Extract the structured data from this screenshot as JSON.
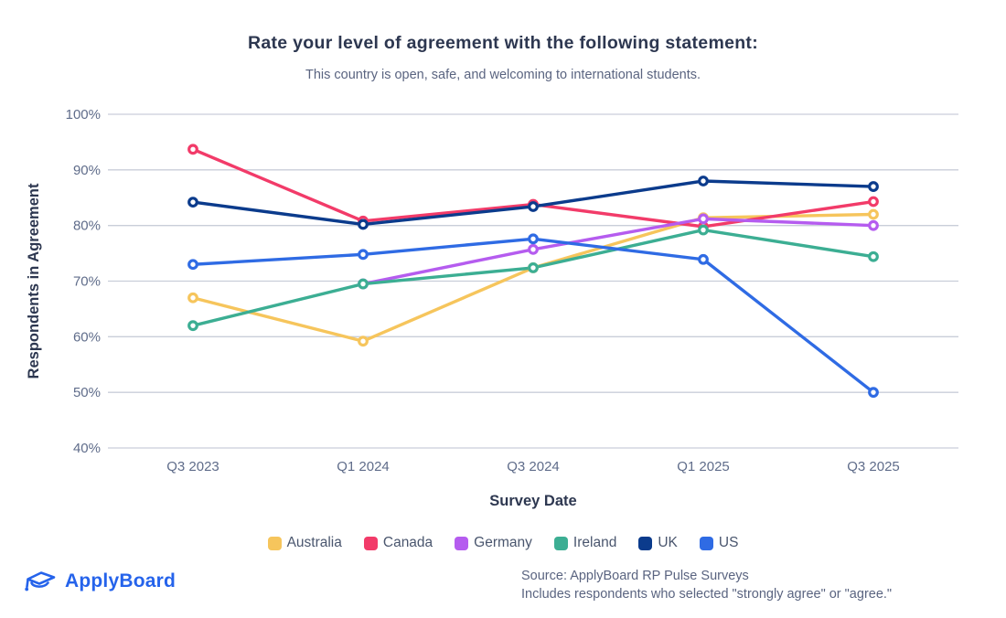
{
  "header": {
    "title": "Rate your level of agreement with the following statement:",
    "subtitle": "This country is open, safe, and welcoming to international students."
  },
  "chart_data": {
    "type": "line",
    "title": "Rate your level of agreement with the following statement:",
    "subtitle": "This country is open, safe, and welcoming to international students.",
    "categories": [
      "Q3 2023",
      "Q1 2024",
      "Q3 2024",
      "Q1 2025",
      "Q3 2025"
    ],
    "series": [
      {
        "name": "Australia",
        "color": "#f6c55c",
        "values": [
          67,
          59.2,
          72.4,
          81.4,
          82
        ]
      },
      {
        "name": "Canada",
        "color": "#f23b69",
        "values": [
          93.7,
          80.8,
          83.8,
          79.8,
          84.3
        ]
      },
      {
        "name": "Germany",
        "color": "#b55cef",
        "values": [
          null,
          69.5,
          75.7,
          81.2,
          80
        ]
      },
      {
        "name": "Ireland",
        "color": "#3cae93",
        "values": [
          62,
          69.5,
          72.4,
          79.2,
          74.4
        ]
      },
      {
        "name": "UK",
        "color": "#0b3b8c",
        "values": [
          84.2,
          80.2,
          83.4,
          88,
          87
        ]
      },
      {
        "name": "US",
        "color": "#2f6be4",
        "values": [
          73,
          74.8,
          77.6,
          73.9,
          50
        ]
      }
    ],
    "xlabel": "Survey Date",
    "ylabel": "Respondents in Agreement",
    "ylim": [
      40,
      100
    ],
    "yticks": [
      {
        "value": 100,
        "label": "100%"
      },
      {
        "value": 90,
        "label": "90%"
      },
      {
        "value": 80,
        "label": "80%"
      },
      {
        "value": 70,
        "label": "70%"
      },
      {
        "value": 60,
        "label": "60%"
      },
      {
        "value": 50,
        "label": "50%"
      },
      {
        "value": 40,
        "label": "40%"
      }
    ],
    "grid": true,
    "legend_position": "bottom"
  },
  "style": {
    "gridline_color": "#c9ced9",
    "tick_label_color": "#5f6c8a",
    "axis_title_color": "#2d3750",
    "accent_blue": "#2563eb"
  },
  "footer": {
    "logo_text": "ApplyBoard",
    "source_line1": "Source: ApplyBoard RP Pulse Surveys",
    "source_line2": "Includes respondents who selected \"strongly agree\" or \"agree.\""
  }
}
